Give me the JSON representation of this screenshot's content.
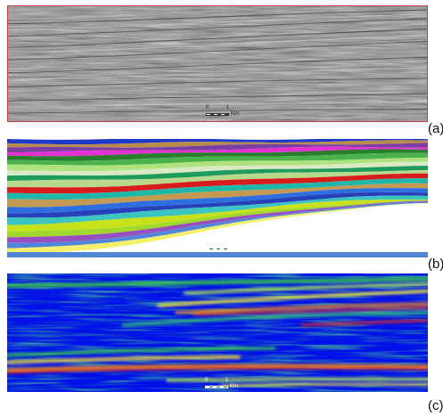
{
  "panels": [
    {
      "label": "(a)",
      "type": "seismic-section"
    },
    {
      "label": "(b)",
      "type": "horizon-segmentation"
    },
    {
      "label": "(c)",
      "type": "attribute-heatmap"
    }
  ],
  "scalebar": {
    "start": "0",
    "end": "1",
    "unit": "Km"
  },
  "colors": {
    "panel_a_border": "#c04040",
    "heatmap_background": "#0010e8",
    "horizon_palette": [
      "#1c39c9",
      "#b98a4e",
      "#7b3fa2",
      "#e52fd2",
      "#2a7d2d",
      "#4ab24a",
      "#aee27c",
      "#d8e9c3",
      "#1f9c5d",
      "#b8d98a",
      "#d81c1c",
      "#1eb7a8",
      "#c49a52",
      "#2d6ee0",
      "#2742b9",
      "#3bc4c0",
      "#c7e21a",
      "#a0d82c",
      "#9a4fc0",
      "#4f86d9",
      "#f4f06a"
    ]
  }
}
